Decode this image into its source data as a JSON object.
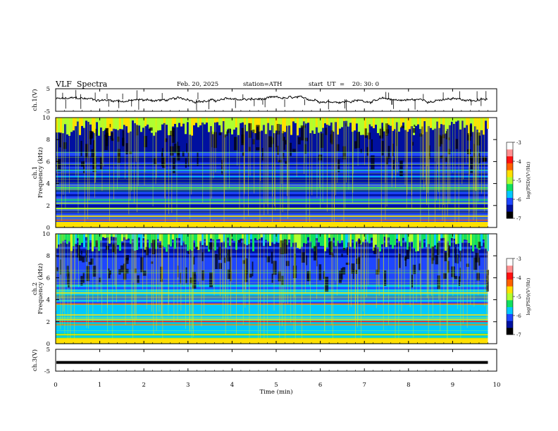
{
  "header": {
    "title": "VLF  Spectra",
    "date": "Feb. 20, 2025",
    "station": "station=ATH",
    "start": "start  UT  =    20: 30: 0"
  },
  "chart_data": {
    "type": "heatmap",
    "xlabel": "Time  (min)",
    "xlim": [
      0,
      10
    ],
    "x_ticks": [
      "0",
      "1",
      "2",
      "3",
      "4",
      "5",
      "6",
      "7",
      "8",
      "9",
      "10"
    ],
    "data_end_min": 9.8,
    "panels": [
      {
        "kind": "waveform",
        "ylabel": "ch.1(V)",
        "ylim": [
          -5,
          5
        ],
        "y_ticks": [
          "5",
          "-5"
        ],
        "color": "#000000"
      },
      {
        "kind": "spectrogram",
        "ylabel_top": "ch.1",
        "ylabel": "Frequency  (kHz)",
        "ylim": [
          0,
          10
        ],
        "y_ticks": [
          "0",
          "2",
          "4",
          "6",
          "8",
          "10"
        ],
        "colorbar": {
          "label": "log(PSD)(V²/Hz)",
          "range": [
            -7,
            -3
          ],
          "ticks": [
            "-3",
            "-4",
            "-5",
            "-6",
            "-7"
          ],
          "colors": [
            "#000000",
            "#0010a0",
            "#1e46ff",
            "#00c8ff",
            "#10e060",
            "#b0ff30",
            "#ffe000",
            "#ff6000",
            "#ff1010",
            "#ff9090",
            "#ffffff"
          ]
        },
        "bands_khz": [
          {
            "f": 0.3,
            "level": -3.3
          },
          {
            "f": 0.65,
            "level": -4.2
          },
          {
            "f": 1.0,
            "level": -4.6
          },
          {
            "f": 1.7,
            "level": -5.2
          },
          {
            "f": 2.2,
            "level": -5.0
          },
          {
            "f": 2.5,
            "level": -5.3
          },
          {
            "f": 3.6,
            "level": -5.6
          },
          {
            "f": 4.6,
            "level": -6.0
          },
          {
            "f": 5.2,
            "level": -6.0
          }
        ]
      },
      {
        "kind": "spectrogram",
        "ylabel_top": "ch.2",
        "ylabel": "Frequency  (kHz)",
        "ylim": [
          0,
          10
        ],
        "y_ticks": [
          "0",
          "2",
          "4",
          "6",
          "8",
          "10"
        ],
        "colorbar": {
          "label": "log(PSD)(V²/Hz)",
          "range": [
            -7,
            -3
          ],
          "ticks": [
            "-3",
            "-4",
            "-5",
            "-6",
            "-7"
          ],
          "colors": [
            "#000000",
            "#0010a0",
            "#1e46ff",
            "#00c8ff",
            "#10e060",
            "#b0ff30",
            "#ffe000",
            "#ff6000",
            "#ff1010",
            "#ff9090",
            "#ffffff"
          ]
        },
        "bands_khz": [
          {
            "f": 0.3,
            "level": -3.6
          },
          {
            "f": 0.8,
            "level": -4.6
          },
          {
            "f": 1.7,
            "level": -4.2
          },
          {
            "f": 2.0,
            "level": -3.9
          },
          {
            "f": 2.2,
            "level": -4.6
          },
          {
            "f": 2.6,
            "level": -4.8
          },
          {
            "f": 3.6,
            "level": -4.3
          },
          {
            "f": 4.6,
            "level": -4.5
          }
        ]
      },
      {
        "kind": "waveform",
        "ylabel": "ch.3(V)",
        "ylim": [
          -5,
          5
        ],
        "y_ticks": [
          "5",
          "-5"
        ],
        "trace_level_v": -1.0,
        "color": "#000000"
      }
    ]
  }
}
